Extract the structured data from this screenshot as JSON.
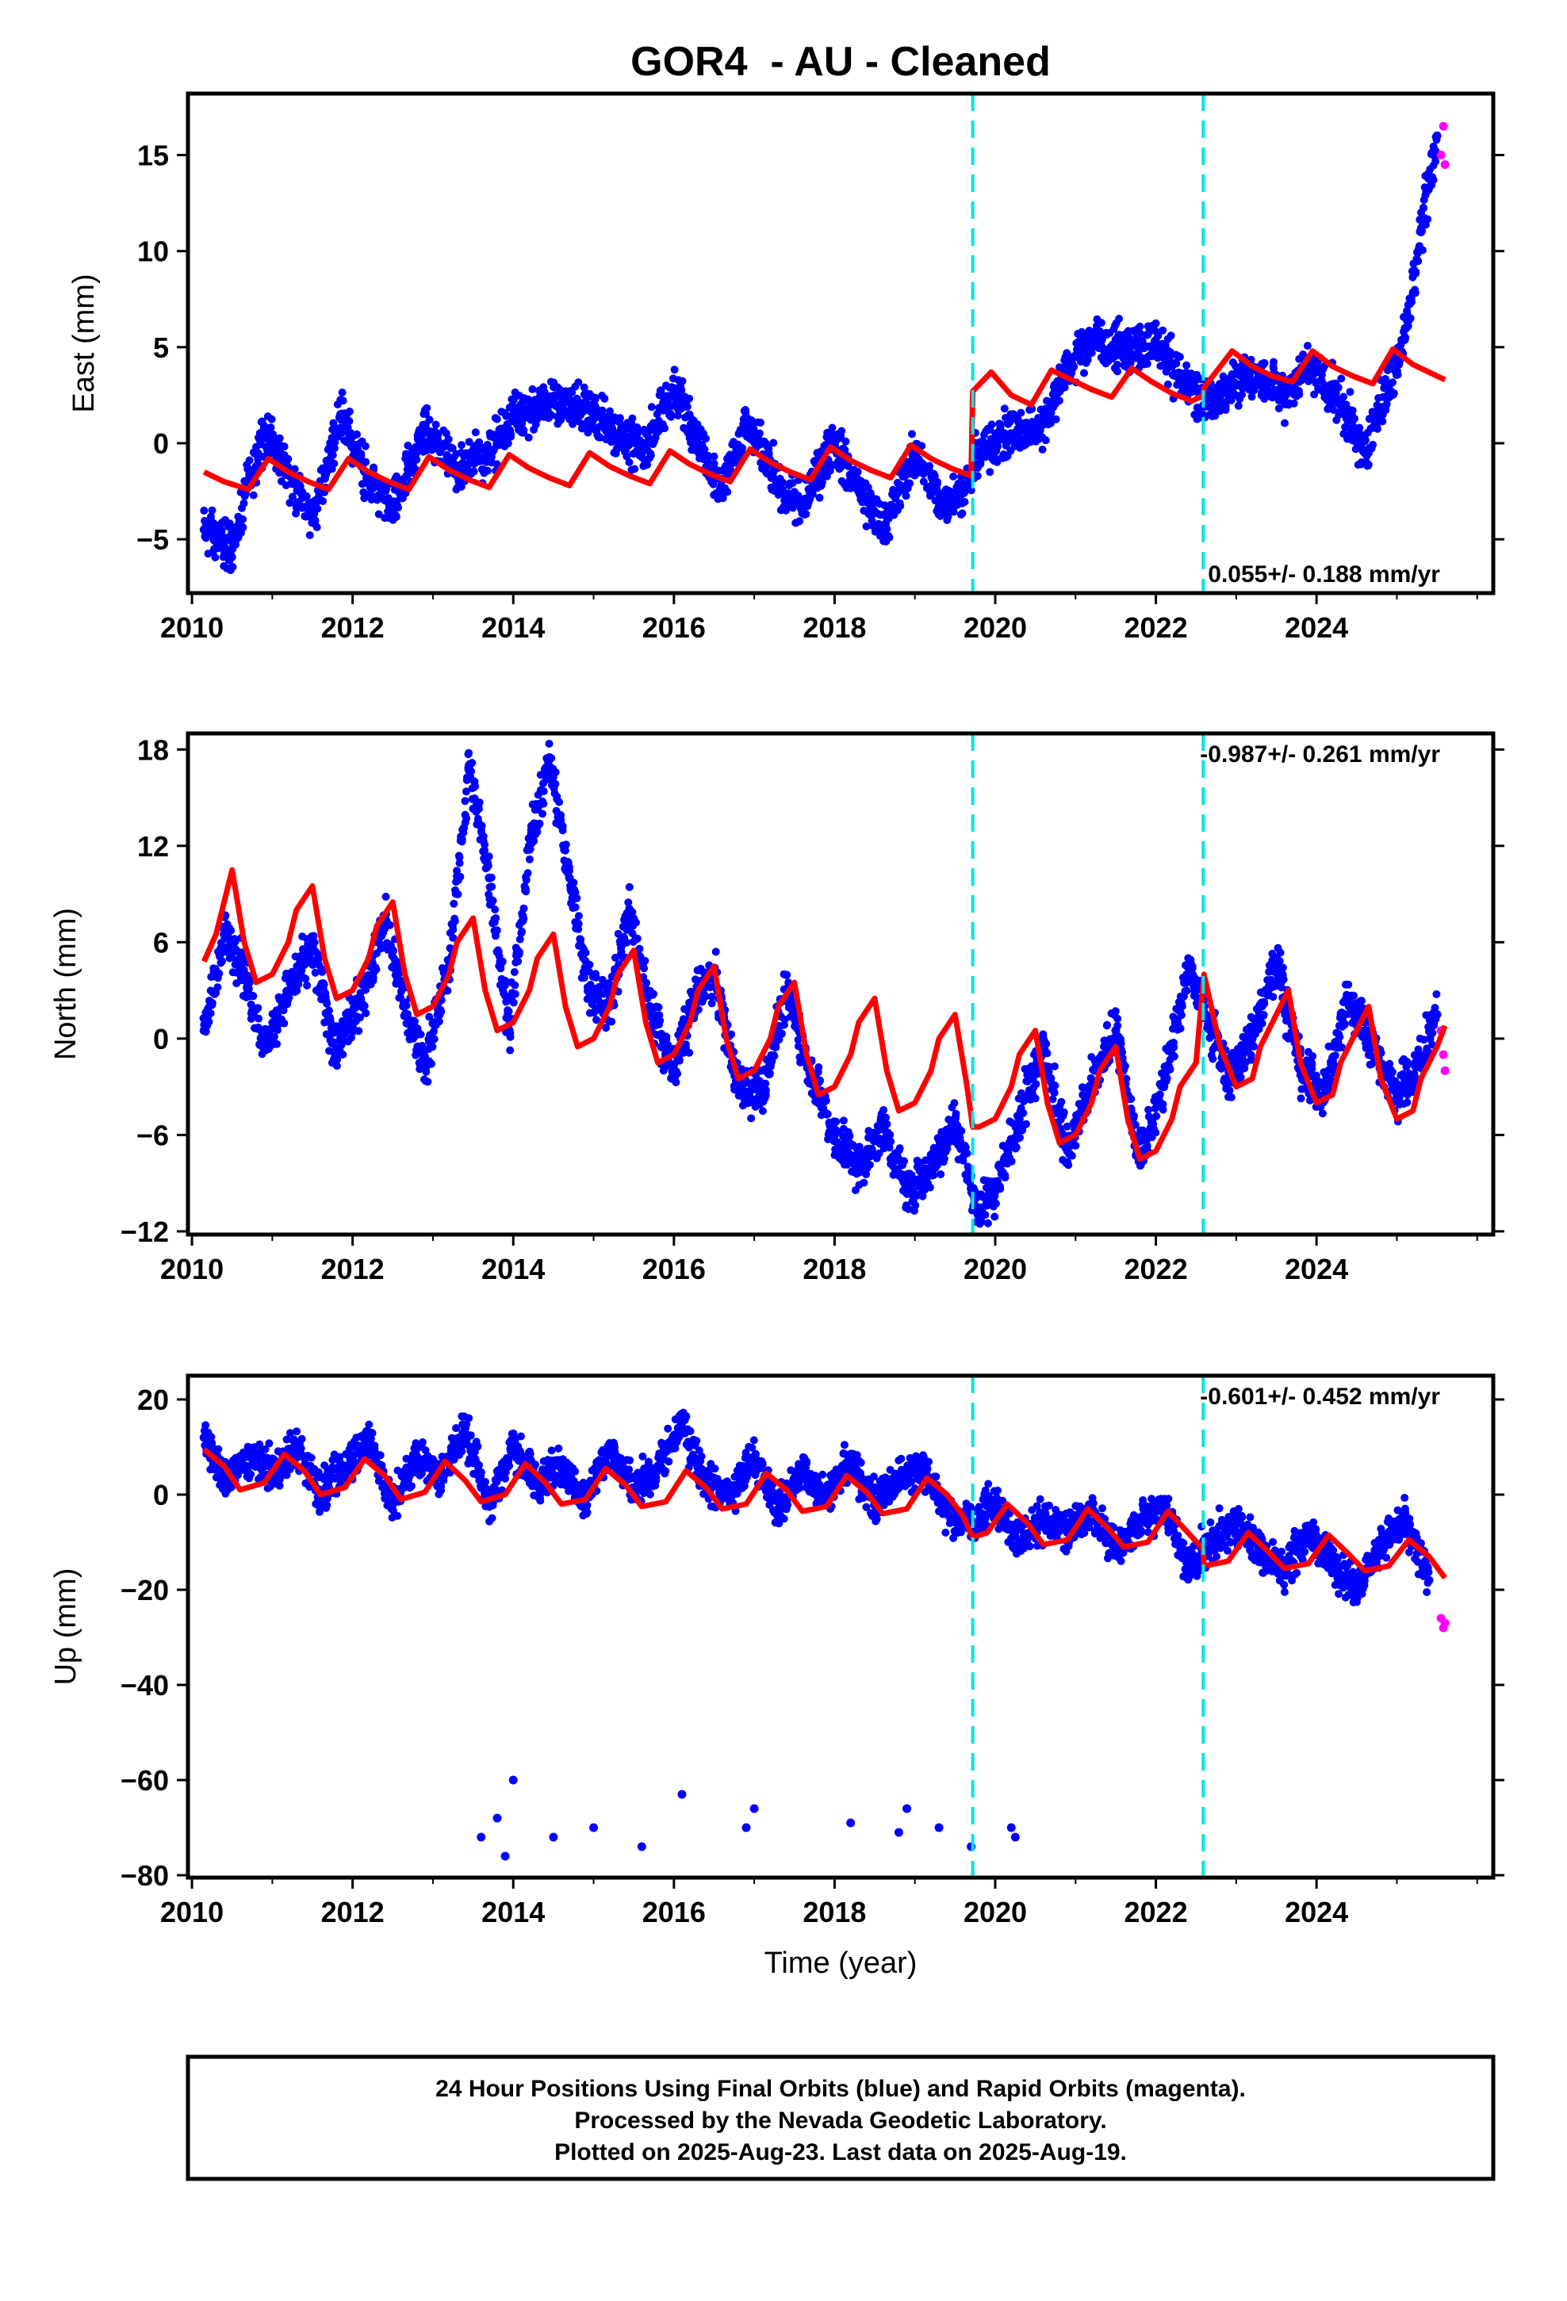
{
  "chart_data": {
    "type": "scatter",
    "title": "GOR4  - AU - Cleaned",
    "xlabel": "Time (year)",
    "x_ticks": [
      "2010",
      "2012",
      "2014",
      "2016",
      "2018",
      "2020",
      "2022",
      "2024"
    ],
    "xlim": [
      2009.95,
      2026.2
    ],
    "equipment_change_lines": [
      2019.72,
      2022.59
    ],
    "line_colors": {
      "final_orbits": "#0000ff",
      "rapid_orbits": "#ff00ff",
      "model": "#ff0000",
      "events": "#00e5e5"
    },
    "panels": [
      {
        "name": "east",
        "ylabel": "East (mm)",
        "ylim": [
          -7.8,
          18.2
        ],
        "y_ticks": [
          -5,
          0,
          5,
          10,
          15
        ],
        "y_tick_labels": [
          "−5",
          "0",
          "5",
          "10",
          "15"
        ],
        "rate_text": "0.055+/- 0.188 mm/yr",
        "rate": 0.055,
        "series": [
          {
            "color": "#0000ff",
            "x": [
              2010.15,
              2010.5,
              2010.9,
              2011.2,
              2011.5,
              2011.85,
              2012.2,
              2012.5,
              2012.9,
              2013.3,
              2013.7,
              2014.0,
              2014.5,
              2014.9,
              2015.3,
              2015.6,
              2016.0,
              2016.3,
              2016.6,
              2016.9,
              2017.3,
              2017.6,
              2018.0,
              2018.3,
              2018.6,
              2019.0,
              2019.3,
              2019.6,
              2019.8,
              2020.2,
              2020.6,
              2020.9,
              2021.2,
              2021.6,
              2022.0,
              2022.3,
              2022.6,
              2022.9,
              2023.3,
              2023.6,
              2023.9,
              2024.3,
              2024.6,
              2024.9,
              2025.1,
              2025.3,
              2025.5
            ],
            "y": [
              -4.5,
              -5.5,
              0.8,
              -1.5,
              -4.0,
              1.5,
              -2.0,
              -3.5,
              0.8,
              -1.5,
              -0.5,
              1.5,
              2.2,
              1.8,
              0.5,
              -0.5,
              2.8,
              0.5,
              -2.5,
              1.0,
              -2.0,
              -3.5,
              0.2,
              -2.5,
              -4.5,
              -0.5,
              -3.0,
              -2.5,
              -0.5,
              0.5,
              1.0,
              4.0,
              5.5,
              4.8,
              5.2,
              3.5,
              2.0,
              3.0,
              3.5,
              2.5,
              4.0,
              2.0,
              -0.5,
              3.0,
              5.5,
              11.0,
              16.0
            ]
          },
          {
            "color": "#ff00ff",
            "x": [
              2025.55,
              2025.58,
              2025.6
            ],
            "y": [
              15.0,
              16.5,
              14.5
            ]
          }
        ],
        "model": {
          "x": [
            2010.15,
            2010.4,
            2010.7,
            2010.95,
            2011.2,
            2011.45,
            2011.7,
            2011.95,
            2012.2,
            2012.45,
            2012.7,
            2012.95,
            2013.2,
            2013.45,
            2013.7,
            2013.95,
            2014.2,
            2014.45,
            2014.7,
            2014.95,
            2015.2,
            2015.45,
            2015.7,
            2015.95,
            2016.2,
            2016.45,
            2016.7,
            2016.95,
            2017.2,
            2017.45,
            2017.7,
            2017.95,
            2018.2,
            2018.45,
            2018.7,
            2018.95,
            2019.2,
            2019.45,
            2019.7,
            2019.72,
            2019.95,
            2020.2,
            2020.45,
            2020.7,
            2020.95,
            2021.2,
            2021.45,
            2021.7,
            2021.95,
            2022.2,
            2022.45,
            2022.59,
            2022.6,
            2022.95,
            2023.2,
            2023.45,
            2023.7,
            2023.95,
            2024.2,
            2024.45,
            2024.7,
            2024.95,
            2025.2,
            2025.45,
            2025.6
          ],
          "y": [
            -1.5,
            -2.0,
            -2.4,
            -0.8,
            -1.5,
            -2.0,
            -2.4,
            -0.8,
            -1.5,
            -2.0,
            -2.4,
            -0.7,
            -1.4,
            -1.9,
            -2.3,
            -0.6,
            -1.3,
            -1.8,
            -2.2,
            -0.5,
            -1.2,
            -1.7,
            -2.1,
            -0.4,
            -1.1,
            -1.6,
            -2.0,
            -0.3,
            -1.0,
            -1.5,
            -1.9,
            -0.2,
            -0.9,
            -1.4,
            -1.8,
            -0.1,
            -0.8,
            -1.3,
            -1.7,
            2.7,
            3.7,
            2.5,
            2.0,
            3.8,
            3.3,
            2.8,
            2.4,
            3.9,
            3.2,
            2.6,
            2.2,
            2.5,
            2.9,
            4.8,
            4.0,
            3.5,
            3.2,
            4.8,
            4.0,
            3.5,
            3.1,
            4.9,
            4.1,
            3.6,
            3.3
          ]
        }
      },
      {
        "name": "north",
        "ylabel": "North (mm)",
        "ylim": [
          -12.2,
          19.0
        ],
        "y_ticks": [
          -12,
          -6,
          0,
          6,
          12,
          18
        ],
        "y_tick_labels": [
          "−12",
          "−6",
          "0",
          "6",
          "12",
          "18"
        ],
        "rate_text": "-0.987+/- 0.261 mm/yr",
        "rate": -0.987,
        "series": [
          {
            "color": "#0000ff",
            "x": [
              2010.15,
              2010.4,
              2010.6,
              2010.9,
              2011.2,
              2011.5,
              2011.8,
              2012.1,
              2012.4,
              2012.7,
              2012.9,
              2013.2,
              2013.45,
              2013.7,
              2013.95,
              2014.2,
              2014.45,
              2014.7,
              2014.95,
              2015.2,
              2015.45,
              2015.7,
              2016.0,
              2016.3,
              2016.5,
              2016.8,
              2017.1,
              2017.4,
              2017.7,
              2018.0,
              2018.3,
              2018.6,
              2018.9,
              2019.2,
              2019.5,
              2019.8,
              2020.0,
              2020.3,
              2020.6,
              2020.9,
              2021.2,
              2021.5,
              2021.8,
              2022.1,
              2022.4,
              2022.6,
              2022.9,
              2023.2,
              2023.5,
              2023.8,
              2024.1,
              2024.4,
              2024.7,
              2025.0,
              2025.3,
              2025.5
            ],
            "y": [
              0.5,
              6.5,
              5.0,
              -0.5,
              3.0,
              5.5,
              -1.0,
              2.5,
              7.5,
              1.0,
              -1.5,
              4.5,
              17.0,
              10.0,
              0.5,
              12.0,
              17.5,
              10.0,
              3.0,
              2.0,
              8.0,
              2.0,
              -2.0,
              3.0,
              4.0,
              -3.0,
              -3.5,
              3.0,
              -2.0,
              -6.0,
              -8.0,
              -5.5,
              -9.5,
              -8.0,
              -5.0,
              -11.0,
              -9.5,
              -5.0,
              -0.5,
              -7.0,
              -3.0,
              0.5,
              -7.5,
              -3.0,
              4.5,
              2.0,
              -2.5,
              0.0,
              5.0,
              -2.0,
              -3.5,
              2.5,
              -0.5,
              -3.5,
              -1.5,
              1.5
            ]
          },
          {
            "color": "#ff00ff",
            "x": [
              2025.55,
              2025.58,
              2025.6
            ],
            "y": [
              0.5,
              -1.0,
              -2.0
            ]
          }
        ],
        "model": {
          "x": [
            2010.15,
            2010.3,
            2010.5,
            2010.65,
            2010.8,
            2011.0,
            2011.2,
            2011.3,
            2011.5,
            2011.65,
            2011.8,
            2012.0,
            2012.2,
            2012.3,
            2012.5,
            2012.65,
            2012.8,
            2013.0,
            2013.2,
            2013.3,
            2013.5,
            2013.65,
            2013.8,
            2014.0,
            2014.2,
            2014.3,
            2014.5,
            2014.65,
            2014.8,
            2015.0,
            2015.2,
            2015.3,
            2015.5,
            2015.65,
            2015.8,
            2016.0,
            2016.2,
            2016.3,
            2016.5,
            2016.65,
            2016.8,
            2017.0,
            2017.2,
            2017.3,
            2017.5,
            2017.65,
            2017.8,
            2018.0,
            2018.2,
            2018.3,
            2018.5,
            2018.65,
            2018.8,
            2019.0,
            2019.2,
            2019.3,
            2019.5,
            2019.65,
            2019.72,
            2019.8,
            2020.0,
            2020.2,
            2020.3,
            2020.5,
            2020.65,
            2020.8,
            2021.0,
            2021.2,
            2021.3,
            2021.5,
            2021.65,
            2021.8,
            2022.0,
            2022.2,
            2022.3,
            2022.5,
            2022.59,
            2022.6,
            2022.8,
            2023.0,
            2023.2,
            2023.3,
            2023.5,
            2023.65,
            2023.8,
            2024.0,
            2024.2,
            2024.3,
            2024.5,
            2024.65,
            2024.8,
            2025.0,
            2025.2,
            2025.3,
            2025.5,
            2025.6
          ],
          "y": [
            4.8,
            6.5,
            10.5,
            6.0,
            3.5,
            4.0,
            6.0,
            8.0,
            9.5,
            5.0,
            2.5,
            3.0,
            5.0,
            7.0,
            8.5,
            4.0,
            1.5,
            2.0,
            4.0,
            6.0,
            7.5,
            3.0,
            0.5,
            1.0,
            3.0,
            5.0,
            6.5,
            2.0,
            -0.5,
            0.0,
            2.0,
            4.0,
            5.5,
            1.0,
            -1.5,
            -1.0,
            1.0,
            3.0,
            4.5,
            0.0,
            -2.5,
            -2.0,
            0.0,
            2.0,
            3.5,
            -1.0,
            -3.5,
            -3.0,
            -1.0,
            1.0,
            2.5,
            -2.0,
            -4.5,
            -4.0,
            -2.0,
            0.0,
            1.5,
            -3.0,
            -5.5,
            -5.5,
            -5.0,
            -3.0,
            -1.0,
            0.5,
            -4.0,
            -6.5,
            -6.0,
            -4.0,
            -2.0,
            -0.5,
            -5.0,
            -7.5,
            -7.0,
            -5.0,
            -3.0,
            -1.5,
            3.5,
            4.0,
            -0.5,
            -3.0,
            -2.5,
            -0.5,
            1.5,
            3.0,
            -1.5,
            -4.0,
            -3.5,
            -1.5,
            0.5,
            2.0,
            -2.5,
            -5.0,
            -4.5,
            -2.5,
            -0.5,
            0.8
          ]
        }
      },
      {
        "name": "up",
        "ylabel": "Up (mm)",
        "ylim": [
          -80.5,
          25
        ],
        "y_ticks": [
          -80,
          -60,
          -40,
          -20,
          0,
          20
        ],
        "y_tick_labels": [
          "−80",
          "−60",
          "−40",
          "−20",
          "0",
          "20"
        ],
        "rate_text": "-0.601+/- 0.452 mm/yr",
        "rate": -0.601,
        "series": [
          {
            "color": "#0000ff",
            "x": [
              2010.15,
              2010.4,
              2010.7,
              2011.0,
              2011.3,
              2011.6,
              2011.9,
              2012.2,
              2012.5,
              2012.8,
              2013.1,
              2013.4,
              2013.7,
              2014.0,
              2014.3,
              2014.6,
              2014.9,
              2015.2,
              2015.5,
              2015.8,
              2016.1,
              2016.4,
              2016.7,
              2017.0,
              2017.3,
              2017.6,
              2017.9,
              2018.2,
              2018.5,
              2018.8,
              2019.1,
              2019.4,
              2019.7,
              2020.0,
              2020.3,
              2020.6,
              2020.9,
              2021.2,
              2021.5,
              2021.8,
              2022.1,
              2022.4,
              2022.7,
              2023.0,
              2023.3,
              2023.6,
              2023.9,
              2024.2,
              2024.5,
              2024.8,
              2025.1,
              2025.4,
              2013.6,
              2013.8,
              2013.9,
              2014.0,
              2014.5,
              2015.0,
              2015.6,
              2016.1,
              2016.9,
              2017.0,
              2018.2,
              2018.8,
              2018.9,
              2019.3,
              2019.7,
              2020.2,
              2020.25
            ],
            "y": [
              12,
              3,
              8,
              5,
              10,
              0,
              6,
              12,
              -2,
              8,
              4,
              14,
              -2,
              10,
              2,
              7,
              -1,
              9,
              1,
              6,
              14,
              3,
              -1,
              8,
              -3,
              5,
              0,
              7,
              -2,
              4,
              6,
              -4,
              -6,
              -2,
              -10,
              -5,
              -8,
              -3,
              -12,
              -6,
              -2,
              -16,
              -10,
              -6,
              -12,
              -16,
              -8,
              -14,
              -20,
              -10,
              -6,
              -18,
              -72,
              -68,
              -76,
              -60,
              -72,
              -70,
              -74,
              -63,
              -70,
              -66,
              -69,
              -71,
              -66,
              -70,
              -74,
              -70,
              -72
            ]
          },
          {
            "color": "#ff00ff",
            "x": [
              2025.55,
              2025.58,
              2025.6
            ],
            "y": [
              -26,
              -28,
              -27
            ]
          }
        ],
        "model": {
          "x": [
            2010.15,
            2010.4,
            2010.6,
            2010.9,
            2011.15,
            2011.4,
            2011.6,
            2011.9,
            2012.15,
            2012.4,
            2012.6,
            2012.9,
            2013.15,
            2013.4,
            2013.6,
            2013.9,
            2014.15,
            2014.4,
            2014.6,
            2014.9,
            2015.15,
            2015.4,
            2015.6,
            2015.9,
            2016.15,
            2016.4,
            2016.6,
            2016.9,
            2017.15,
            2017.4,
            2017.6,
            2017.9,
            2018.15,
            2018.4,
            2018.6,
            2018.9,
            2019.15,
            2019.4,
            2019.6,
            2019.72,
            2019.9,
            2020.15,
            2020.4,
            2020.6,
            2020.9,
            2021.15,
            2021.4,
            2021.6,
            2021.9,
            2022.15,
            2022.4,
            2022.59,
            2022.6,
            2022.9,
            2023.15,
            2023.4,
            2023.6,
            2023.9,
            2024.15,
            2024.4,
            2024.6,
            2024.9,
            2025.15,
            2025.4,
            2025.6
          ],
          "y": [
            9.5,
            6,
            1,
            2.5,
            8.5,
            5,
            0,
            1.5,
            7.5,
            4,
            -1,
            0.5,
            7,
            3,
            -1.5,
            0,
            6.5,
            2.5,
            -2,
            -1,
            5.5,
            2,
            -2.5,
            -1.5,
            5,
            1.5,
            -3,
            -2,
            4.5,
            1,
            -3.5,
            -2.5,
            4,
            0.5,
            -4,
            -3,
            3.5,
            0,
            -4.5,
            -9,
            -8,
            -2,
            -6,
            -10.5,
            -9.5,
            -3,
            -7,
            -11,
            -10,
            -3.5,
            -8,
            -11.5,
            -15,
            -14,
            -8,
            -12,
            -15.5,
            -14.5,
            -8.5,
            -12.5,
            -16,
            -15,
            -9.5,
            -13,
            -17.5
          ]
        }
      }
    ]
  },
  "footer": {
    "line1": "24 Hour Positions Using Final Orbits (blue) and Rapid Orbits (magenta).",
    "line2": "Processed by the Nevada Geodetic Laboratory.",
    "line3": "Plotted on 2025-Aug-23. Last data on 2025-Aug-19."
  }
}
